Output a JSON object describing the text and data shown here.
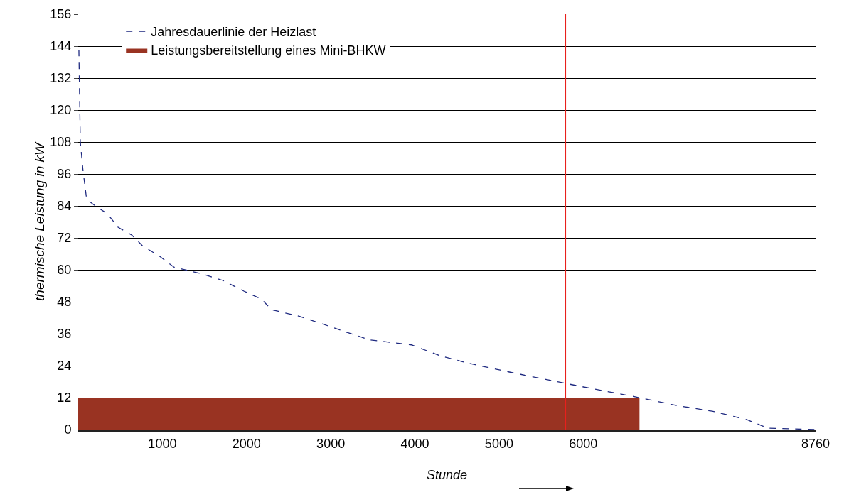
{
  "chart_data": {
    "type": "line",
    "xlabel": "Stunde",
    "ylabel": "thermische Leistung in kW",
    "xlim": [
      0,
      8760
    ],
    "xticks": [
      1000,
      2000,
      3000,
      4000,
      5000,
      6000,
      8760
    ],
    "ylim": [
      0,
      156
    ],
    "yticks": [
      0,
      12,
      24,
      36,
      48,
      60,
      72,
      84,
      96,
      108,
      120,
      132,
      144,
      156
    ],
    "grid": "y",
    "legend": "top left",
    "series": [
      {
        "name": "Jahresdauerlinie der Heizlast",
        "color": "#1f2a80",
        "line_style": "dashed",
        "x": [
          8,
          25,
          58,
          100,
          208,
          349,
          473,
          639,
          764,
          971,
          1137,
          1470,
          1719,
          1968,
          2175,
          2300,
          2632,
          2964,
          3213,
          3462,
          3960,
          4292,
          4624,
          5122,
          5620,
          6035,
          6617,
          7116,
          7531,
          7946,
          8195,
          8760
        ],
        "values": [
          142.6,
          108,
          97,
          86.5,
          83.9,
          81,
          76,
          73,
          69,
          65,
          61,
          58.5,
          56,
          52,
          49,
          45,
          42.5,
          39,
          36.3,
          33.7,
          31.8,
          27.8,
          25,
          21.6,
          18.4,
          15.8,
          12.3,
          9,
          6.9,
          3.7,
          0.5,
          0
        ]
      },
      {
        "name": "Leistungsbereitstellung eines Mini-BHKW",
        "type": "area",
        "color": "#993322",
        "x": [
          0,
          6668
        ],
        "values": [
          12,
          12
        ]
      }
    ],
    "ref_lines": [
      {
        "axis": "x",
        "value": 5787,
        "color": "#e8201c",
        "line_style": "solid"
      }
    ]
  }
}
